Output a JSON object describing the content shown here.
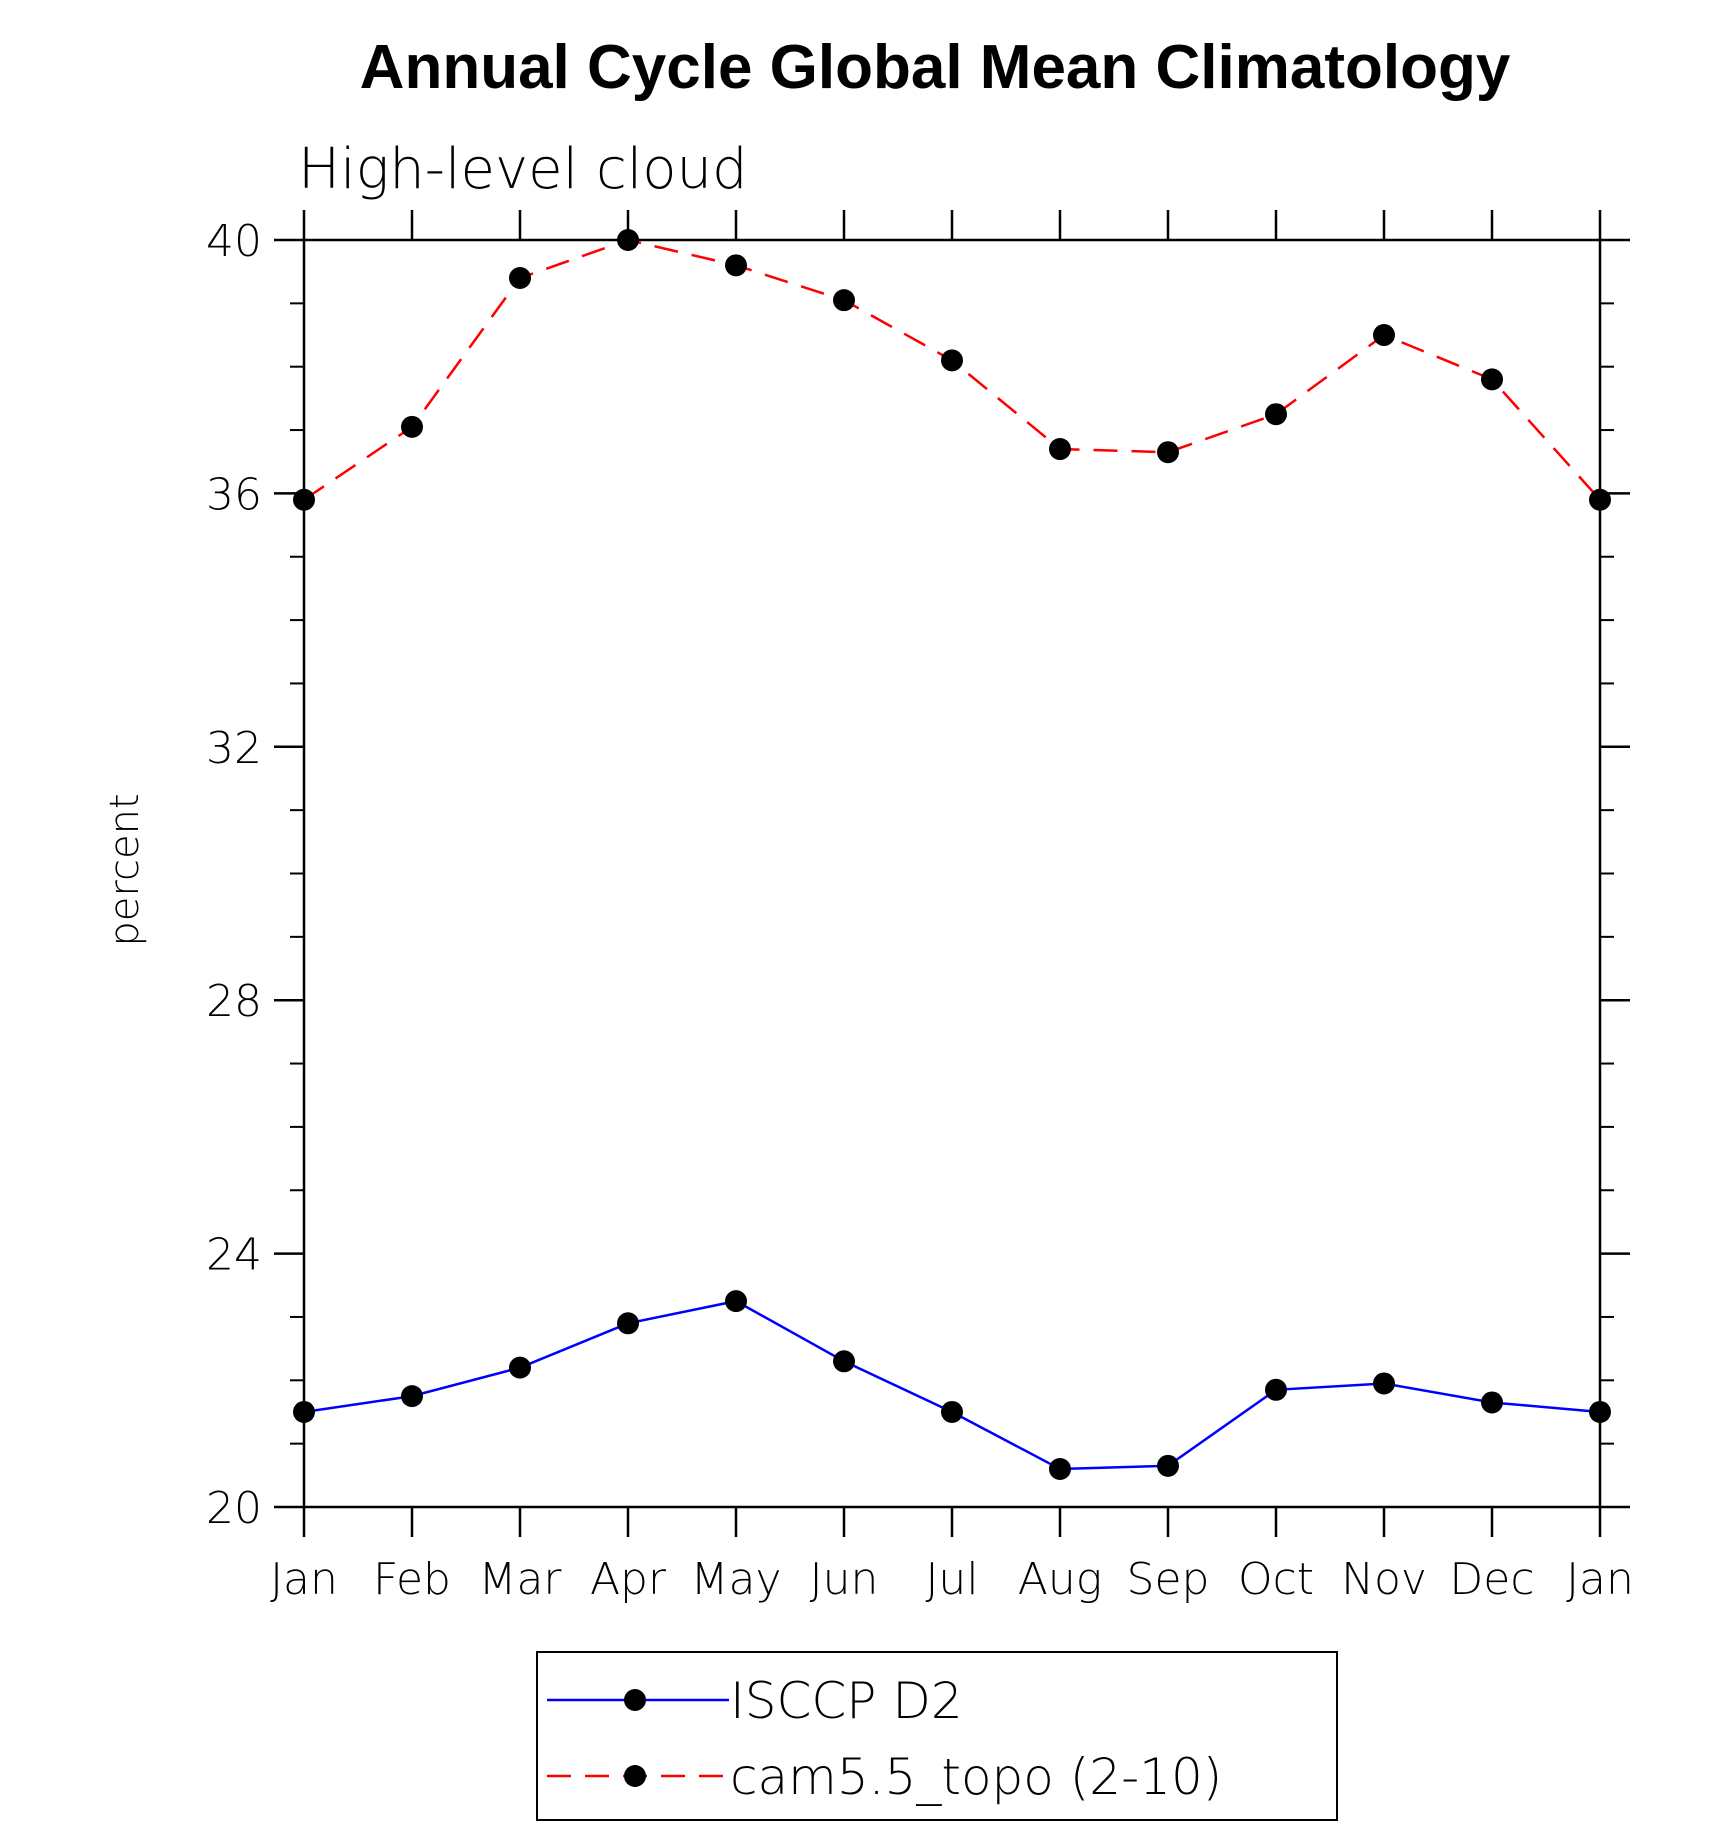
{
  "chart_data": {
    "type": "line",
    "title": "Annual Cycle Global Mean Climatology",
    "subtitle": "High-level cloud",
    "ylabel": "percent",
    "xlabel": "",
    "categories": [
      "Jan",
      "Feb",
      "Mar",
      "Apr",
      "May",
      "Jun",
      "Jul",
      "Aug",
      "Sep",
      "Oct",
      "Nov",
      "Dec",
      "Jan"
    ],
    "ylim": [
      20,
      40
    ],
    "yticks": [
      20,
      24,
      28,
      32,
      36,
      40
    ],
    "ytick_labels": [
      "20",
      "24",
      "28",
      "32",
      "36",
      "40"
    ],
    "grid": false,
    "legend_position": "bottom",
    "series": [
      {
        "name": "ISCCP D2",
        "color": "#0000ff",
        "line_style": "solid",
        "marker": "filled-circle",
        "values": [
          21.5,
          21.75,
          22.2,
          22.9,
          23.25,
          22.3,
          21.5,
          20.6,
          20.65,
          21.85,
          21.95,
          21.65,
          21.5
        ]
      },
      {
        "name": "cam5.5_topo (2-10)",
        "color": "#ff0000",
        "line_style": "dashed",
        "marker": "filled-circle",
        "values": [
          35.9,
          37.05,
          39.4,
          40.0,
          39.6,
          39.05,
          38.1,
          36.7,
          36.65,
          37.25,
          38.5,
          37.8,
          35.9
        ]
      }
    ]
  }
}
